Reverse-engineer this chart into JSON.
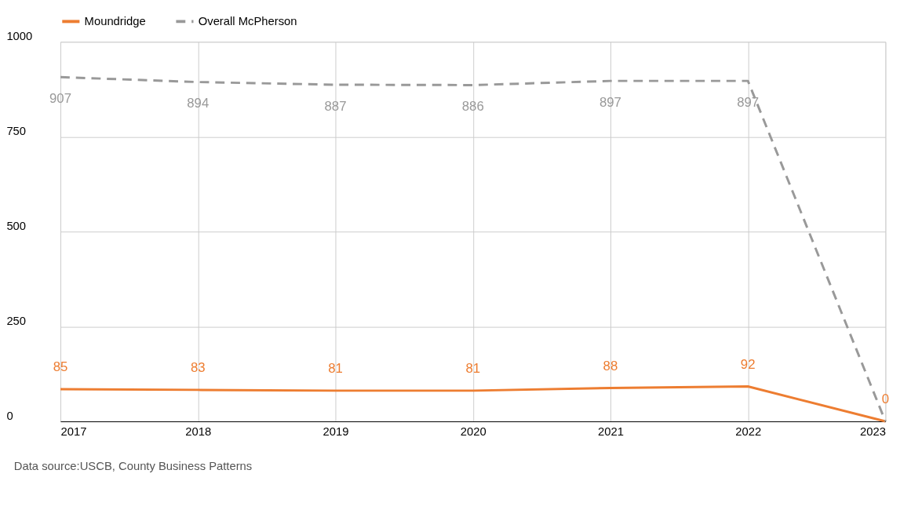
{
  "chart_data": {
    "type": "line",
    "x": [
      2017,
      2018,
      2019,
      2020,
      2021,
      2022,
      2023
    ],
    "series": [
      {
        "name": "Moundridge",
        "color": "#ed7d31",
        "values": [
          85,
          83,
          81,
          81,
          88,
          92,
          0
        ],
        "line_style": "solid",
        "value_labels": [
          "85",
          "83",
          "81",
          "81",
          "88",
          "92",
          "0"
        ]
      },
      {
        "name": "Overall McPherson",
        "color": "#999999",
        "values": [
          907,
          894,
          887,
          886,
          897,
          897,
          0
        ],
        "line_style": "dashed",
        "value_labels": [
          "907",
          "894",
          "887",
          "886",
          "897",
          "897",
          null
        ]
      }
    ],
    "xlim": [
      2017,
      2023
    ],
    "xticks": [
      2017,
      2018,
      2019,
      2020,
      2021,
      2022,
      2023
    ],
    "ylim": [
      0,
      1000
    ],
    "yticks": [
      0,
      250,
      500,
      750,
      1000
    ],
    "grid": true,
    "legend": "top",
    "marker": "none",
    "annotations": [
      "Data source:USCB, County Business Patterns"
    ]
  }
}
